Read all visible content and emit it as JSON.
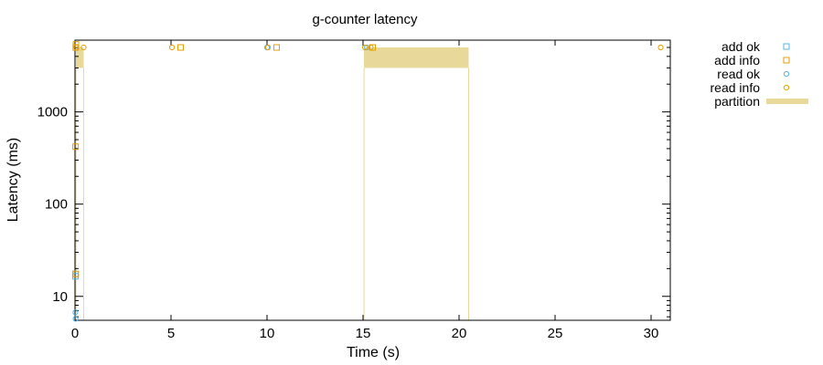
{
  "chart_data": {
    "type": "scatter",
    "title": "g-counter latency",
    "xlabel": "Time (s)",
    "ylabel": "Latency (ms)",
    "xlim": [
      0,
      31
    ],
    "ylim": [
      5.5,
      6000
    ],
    "log_y": true,
    "grid": false,
    "legend_position": "outside-right",
    "x_ticks": [
      0,
      5,
      10,
      15,
      20,
      25,
      30
    ],
    "y_ticks": [
      10,
      100,
      1000
    ],
    "series": [
      {
        "name": "add ok",
        "marker": "square",
        "color": "#56b4e9",
        "points": [
          {
            "x": 0.02,
            "y": 16.5
          },
          {
            "x": 0.03,
            "y": 17.5
          }
        ]
      },
      {
        "name": "add info",
        "marker": "square",
        "color": "#e69f00",
        "points": [
          {
            "x": 0.05,
            "y": 5400
          },
          {
            "x": 0.04,
            "y": 5000
          },
          {
            "x": 0.03,
            "y": 420
          },
          {
            "x": 0.04,
            "y": 17.5
          },
          {
            "x": 5.5,
            "y": 5000
          },
          {
            "x": 10.5,
            "y": 5000
          },
          {
            "x": 15.5,
            "y": 5000
          }
        ]
      },
      {
        "name": "read ok",
        "marker": "circle",
        "color": "#56b4e9",
        "points": [
          {
            "x": 0.02,
            "y": 6.7
          },
          {
            "x": 0.03,
            "y": 5.7
          },
          {
            "x": 10.0,
            "y": 5000
          },
          {
            "x": 15.2,
            "y": 5000
          }
        ]
      },
      {
        "name": "read info",
        "marker": "circle",
        "color": "#e69f00",
        "points": [
          {
            "x": 0.06,
            "y": 5000
          },
          {
            "x": 0.45,
            "y": 5000
          },
          {
            "x": 5.05,
            "y": 5000
          },
          {
            "x": 10.05,
            "y": 5000
          },
          {
            "x": 15.1,
            "y": 5000
          },
          {
            "x": 15.4,
            "y": 5000
          },
          {
            "x": 30.5,
            "y": 5000
          }
        ]
      },
      {
        "name": "partition",
        "marker": "band",
        "color": "#e8d99a",
        "intervals": [
          {
            "start": 0.05,
            "end": 0.45
          },
          {
            "start": 15.05,
            "end": 20.5
          }
        ]
      }
    ]
  }
}
